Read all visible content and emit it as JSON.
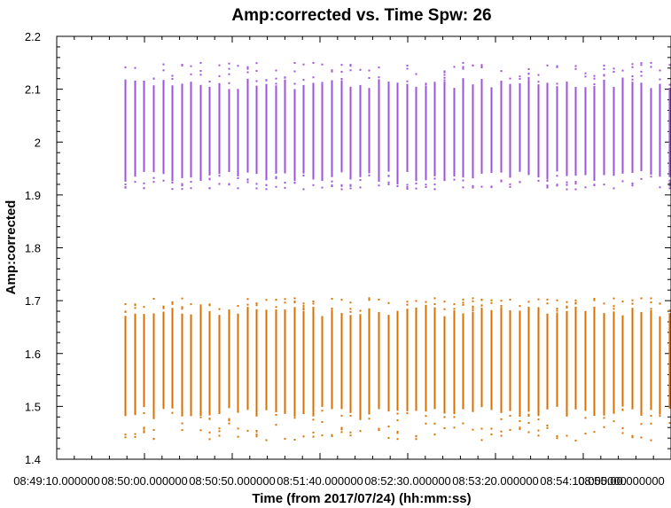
{
  "chart_data": {
    "type": "scatter",
    "title": "Amp:corrected vs. Time Spw: 26",
    "xlabel": "Time (from 2017/07/24) (hh:mm:ss)",
    "ylabel": "Amp:corrected",
    "ylim": [
      1.4,
      2.2
    ],
    "y_ticks": [
      "1.4",
      "1.5",
      "1.6",
      "1.7",
      "1.8",
      "1.9",
      "2",
      "2.1",
      "2.2"
    ],
    "x_range_seconds": [
      31750,
      32100
    ],
    "x_ticks": [
      "08:49:10.000000",
      "08:50:00.000000",
      "08:50:50.000000",
      "08:51:40.000000",
      "08:52:30.000000",
      "08:53:20.000000",
      "08:54:10.000000",
      "08:55:00.000000"
    ],
    "grid": false,
    "time_start": "08:49:49",
    "time_end": "08:54:59",
    "num_integrations": 59,
    "series": [
      {
        "color": "#9c55d9",
        "y_core": [
          1.935,
          2.11
        ],
        "y_extent": [
          1.91,
          2.15
        ]
      },
      {
        "color": "#d77200",
        "y_core": [
          1.49,
          1.68
        ],
        "y_extent": [
          1.435,
          1.705
        ]
      }
    ]
  }
}
